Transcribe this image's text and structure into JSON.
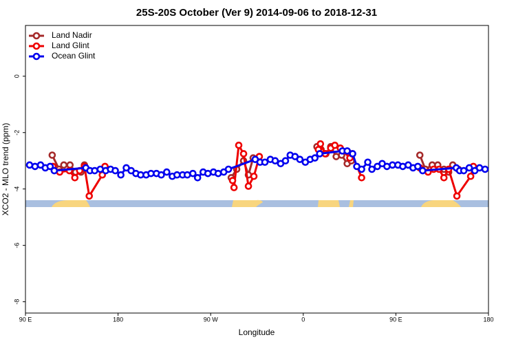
{
  "chart_data": {
    "type": "line",
    "title": "25S-20S October (Ver 9)   2014-09-06 to 2018-12-31",
    "x_label": "Longitude",
    "y_label": "XCO2 - MLO trend (ppm)",
    "xlim": [
      90,
      540
    ],
    "ylim": [
      -8.4,
      1.8
    ],
    "xticks": [
      {
        "value": 90,
        "label": "90 E"
      },
      180,
      {
        "value": 270,
        "label": "90 W"
      },
      {
        "value": 360,
        "label": "0"
      },
      {
        "value": 450,
        "label": "90 E"
      },
      {
        "value": 540,
        "label": "180"
      }
    ],
    "yticks": [
      0,
      -2,
      -4,
      -6,
      -8
    ],
    "legend": "top-left",
    "series": [
      {
        "name": "Land Nadir",
        "color": "#a52a2a",
        "x": [
          116,
          122.7,
          127.3,
          133.3,
          138.7,
          144,
          147.3,
          null,
          290,
          295.3,
          302,
          306.7,
          311.3,
          null,
          373.3,
          377.3,
          382,
          386.7,
          392,
          397.3,
          402.7,
          406.7,
          null,
          473.3,
          478.7,
          485.3,
          490.7,
          496.7,
          501.3,
          505.3,
          510.7
        ],
        "values": [
          -2.8,
          -3.3,
          -3.15,
          -3.15,
          -3.4,
          -3.4,
          -3.15,
          null,
          -3.6,
          -3.3,
          -3.0,
          -3.5,
          -2.9,
          null,
          -2.5,
          -2.6,
          -2.75,
          -2.5,
          -2.85,
          -2.8,
          -3.1,
          -3.0,
          null,
          -2.8,
          -3.3,
          -3.15,
          -3.15,
          -3.3,
          -3.4,
          -3.15,
          -3.3
        ]
      },
      {
        "name": "Land Glint",
        "color": "#ee0000",
        "x": [
          116.7,
          123.3,
          132.7,
          138,
          142.7,
          147.3,
          152,
          164.7,
          167.3,
          null,
          291.3,
          292.7,
          297.3,
          302,
          306.7,
          312,
          317.3,
          null,
          374.7,
          376.7,
          381.3,
          386.7,
          390.7,
          396,
          405.3,
          407.3,
          416.7,
          null,
          473.3,
          481.3,
          486.7,
          492,
          496.7,
          501.3,
          509.3,
          522.7,
          525.3
        ],
        "values": [
          -3.2,
          -3.4,
          -3.35,
          -3.6,
          -3.35,
          -3.2,
          -4.25,
          -3.5,
          -3.2,
          null,
          -3.7,
          -3.95,
          -2.45,
          -2.75,
          -3.9,
          -3.55,
          -2.85,
          null,
          -2.6,
          -2.4,
          -2.75,
          -2.55,
          -2.45,
          -2.55,
          -2.9,
          -2.75,
          -3.6,
          null,
          -3.25,
          -3.4,
          -3.3,
          -3.3,
          -3.6,
          -3.3,
          -4.25,
          -3.55,
          -3.2
        ]
      },
      {
        "name": "Ocean Glint",
        "color": "#0000ee",
        "x": [
          94,
          99.3,
          104.7,
          109.3,
          114,
          118,
          148.7,
          152.7,
          157.3,
          162.7,
          168,
          172.7,
          177.3,
          182.7,
          188,
          192.7,
          197.3,
          202,
          207.3,
          212,
          217.3,
          222,
          227.3,
          232.7,
          237.3,
          242.7,
          247.3,
          252.7,
          257.3,
          262.7,
          267.3,
          272.7,
          277.3,
          282.7,
          287.3,
          313.3,
          318,
          322.7,
          328,
          332.7,
          338,
          342.7,
          347.3,
          352,
          356.7,
          362,
          366.7,
          371.3,
          376,
          398,
          402.7,
          408,
          412,
          416.7,
          422.7,
          426.7,
          432,
          436.7,
          441.3,
          446.7,
          452,
          456.7,
          462,
          466.7,
          471.3,
          476,
          508.7,
          512,
          516,
          521.3,
          526.7,
          531.3,
          536.7
        ],
        "values": [
          -3.15,
          -3.2,
          -3.15,
          -3.25,
          -3.2,
          -3.35,
          -3.25,
          -3.35,
          -3.35,
          -3.3,
          -3.35,
          -3.3,
          -3.35,
          -3.5,
          -3.25,
          -3.35,
          -3.45,
          -3.5,
          -3.5,
          -3.45,
          -3.45,
          -3.5,
          -3.4,
          -3.55,
          -3.5,
          -3.5,
          -3.5,
          -3.45,
          -3.6,
          -3.4,
          -3.45,
          -3.4,
          -3.45,
          -3.4,
          -3.3,
          -2.95,
          -3.05,
          -3.05,
          -2.95,
          -3.0,
          -3.1,
          -3.0,
          -2.8,
          -2.85,
          -2.95,
          -3.05,
          -2.95,
          -2.9,
          -2.75,
          -2.65,
          -2.65,
          -2.75,
          -3.2,
          -3.3,
          -3.05,
          -3.3,
          -3.2,
          -3.1,
          -3.2,
          -3.15,
          -3.15,
          -3.2,
          -3.15,
          -3.25,
          -3.2,
          -3.35,
          -3.25,
          -3.35,
          -3.35,
          -3.25,
          -3.35,
          -3.25,
          -3.3
        ]
      }
    ]
  }
}
